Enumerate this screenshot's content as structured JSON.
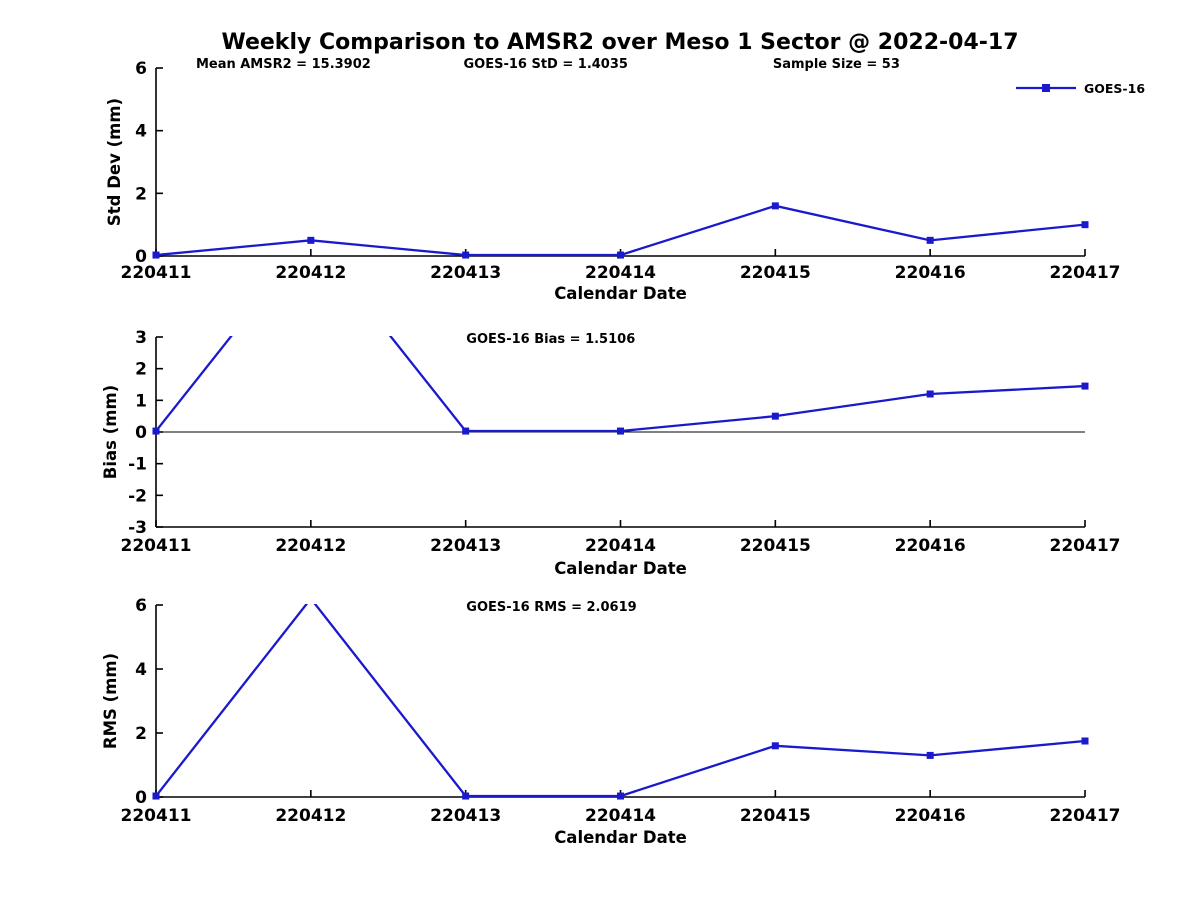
{
  "title": "Weekly Comparison to AMSR2 over Meso 1 Sector @ 2022-04-17",
  "colors": {
    "line": "#1a1acc",
    "axis": "#000000",
    "background": "#ffffff",
    "text": "#000000"
  },
  "legend": {
    "label": "GOES-16",
    "position": "top-right",
    "marker": "square"
  },
  "chart_data": [
    {
      "type": "line",
      "annotations": [
        "Mean AMSR2 = 15.3902",
        "GOES-16 StD = 1.4035",
        "Sample Size = 53"
      ],
      "categories": [
        "220411",
        "220412",
        "220413",
        "220414",
        "220415",
        "220416",
        "220417"
      ],
      "series": [
        {
          "name": "GOES-16",
          "values": [
            0.03,
            0.5,
            0.03,
            0.03,
            1.6,
            0.5,
            1.0
          ]
        }
      ],
      "xlabel": "Calendar Date",
      "ylabel": "Std Dev (mm)",
      "ylim": [
        0,
        6
      ],
      "yticks": [
        0,
        2,
        4,
        6
      ],
      "zero_line": false,
      "grid": false,
      "legend": true
    },
    {
      "type": "line",
      "annotations": [
        "GOES-16 Bias  = 1.5106"
      ],
      "categories": [
        "220411",
        "220412",
        "220413",
        "220414",
        "220415",
        "220416",
        "220417"
      ],
      "series": [
        {
          "name": "GOES-16",
          "values": [
            0.03,
            6.2,
            0.03,
            0.03,
            0.5,
            1.2,
            1.45
          ]
        }
      ],
      "xlabel": "Calendar Date",
      "ylabel": "Bias (mm)",
      "ylim": [
        -3,
        3
      ],
      "yticks": [
        -3,
        -2,
        -1,
        0,
        1,
        2,
        3
      ],
      "zero_line": true,
      "grid": false,
      "legend": false,
      "note": "peak at 220412 clipped above ylim"
    },
    {
      "type": "line",
      "annotations": [
        "GOES-16 RMS = 2.0619"
      ],
      "categories": [
        "220411",
        "220412",
        "220413",
        "220414",
        "220415",
        "220416",
        "220417"
      ],
      "series": [
        {
          "name": "GOES-16",
          "values": [
            0.03,
            6.2,
            0.03,
            0.03,
            1.6,
            1.3,
            1.75
          ]
        }
      ],
      "xlabel": "Calendar Date",
      "ylabel": "RMS (mm)",
      "ylim": [
        0,
        6
      ],
      "yticks": [
        0,
        2,
        4,
        6
      ],
      "zero_line": false,
      "grid": false,
      "legend": false,
      "note": "peak at 220412 clipped above ylim"
    }
  ]
}
